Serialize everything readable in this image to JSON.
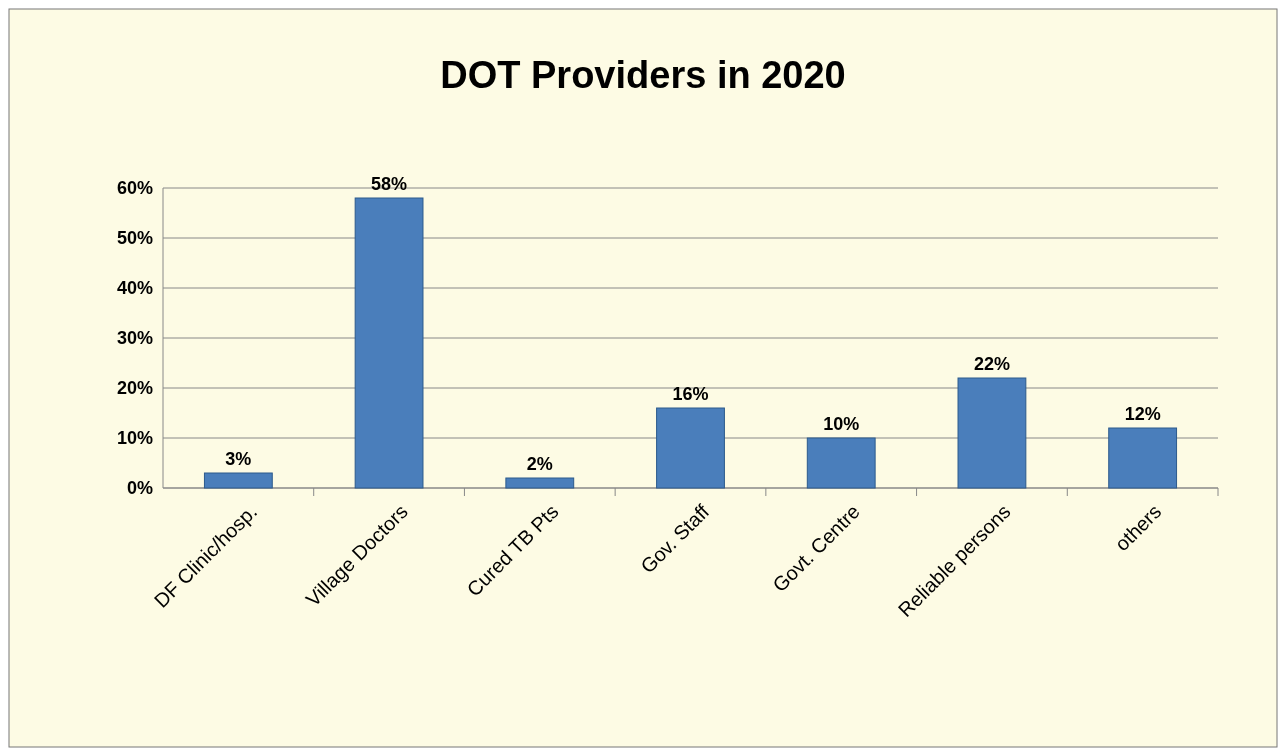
{
  "chart_data": {
    "type": "bar",
    "title": "DOT Providers in 2020",
    "categories": [
      "DF Clinic/hosp.",
      "Village Doctors",
      "Cured TB Pts",
      "Gov. Staff",
      "Govt. Centre",
      "Reliable persons",
      "others"
    ],
    "values": [
      3,
      58,
      2,
      16,
      10,
      22,
      12
    ],
    "value_labels": [
      "3%",
      "58%",
      "2%",
      "16%",
      "10%",
      "22%",
      "12%"
    ],
    "color": "#4a7ebb",
    "ylim": [
      0,
      60
    ],
    "yticks": [
      {
        "value": 0,
        "label": "0%"
      },
      {
        "value": 10,
        "label": "10%"
      },
      {
        "value": 20,
        "label": "20%"
      },
      {
        "value": 30,
        "label": "30%"
      },
      {
        "value": 40,
        "label": "40%"
      },
      {
        "value": 50,
        "label": "50%"
      },
      {
        "value": 60,
        "label": "60%"
      }
    ],
    "grid": true
  }
}
